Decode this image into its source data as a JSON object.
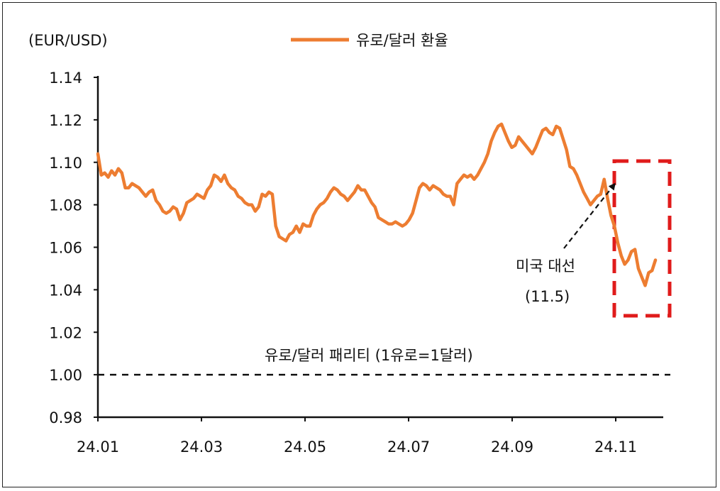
{
  "chart_data": {
    "type": "line",
    "unit_label": "(EUR/USD)",
    "legend": "유로/달러 환율",
    "legend_position": "top-center",
    "series_color": "#ED7D31",
    "grid": false,
    "ylim": [
      0.98,
      1.14
    ],
    "y_ticks": [
      "1.14",
      "1.12",
      "1.10",
      "1.08",
      "1.06",
      "1.04",
      "1.02",
      "1.00",
      "0.98"
    ],
    "x_ticks": [
      "24.01",
      "24.03",
      "24.05",
      "24.07",
      "24.09",
      "24.11"
    ],
    "parity": {
      "value": 1.0,
      "label": "유로/달러 패리티 (1유로=1달러)",
      "style": "dashed"
    },
    "annotation": {
      "line1": "미국 대선",
      "line2": "(11.5)"
    },
    "highlight_color": "#E01B1B",
    "series": [
      {
        "name": "유로/달러 환율",
        "values": [
          1.104,
          1.094,
          1.095,
          1.093,
          1.096,
          1.094,
          1.097,
          1.095,
          1.088,
          1.088,
          1.09,
          1.089,
          1.088,
          1.086,
          1.084,
          1.086,
          1.087,
          1.082,
          1.08,
          1.077,
          1.076,
          1.077,
          1.079,
          1.078,
          1.073,
          1.076,
          1.081,
          1.082,
          1.083,
          1.085,
          1.084,
          1.083,
          1.087,
          1.089,
          1.094,
          1.093,
          1.091,
          1.094,
          1.09,
          1.088,
          1.087,
          1.084,
          1.083,
          1.081,
          1.08,
          1.08,
          1.077,
          1.079,
          1.085,
          1.084,
          1.086,
          1.085,
          1.07,
          1.065,
          1.064,
          1.063,
          1.066,
          1.067,
          1.07,
          1.067,
          1.071,
          1.07,
          1.07,
          1.075,
          1.078,
          1.08,
          1.081,
          1.083,
          1.086,
          1.088,
          1.087,
          1.085,
          1.084,
          1.082,
          1.084,
          1.086,
          1.089,
          1.087,
          1.087,
          1.084,
          1.081,
          1.079,
          1.074,
          1.073,
          1.072,
          1.071,
          1.071,
          1.072,
          1.071,
          1.07,
          1.071,
          1.073,
          1.076,
          1.082,
          1.088,
          1.09,
          1.089,
          1.087,
          1.089,
          1.088,
          1.087,
          1.085,
          1.084,
          1.084,
          1.08,
          1.09,
          1.092,
          1.094,
          1.093,
          1.094,
          1.092,
          1.094,
          1.097,
          1.1,
          1.104,
          1.11,
          1.114,
          1.117,
          1.118,
          1.114,
          1.11,
          1.107,
          1.108,
          1.112,
          1.11,
          1.108,
          1.106,
          1.104,
          1.107,
          1.111,
          1.115,
          1.116,
          1.114,
          1.113,
          1.117,
          1.116,
          1.111,
          1.106,
          1.098,
          1.097,
          1.094,
          1.09,
          1.086,
          1.083,
          1.08,
          1.082,
          1.084,
          1.085,
          1.092,
          1.083,
          1.075,
          1.07,
          1.062,
          1.056,
          1.052,
          1.054,
          1.058,
          1.059,
          1.05,
          1.046,
          1.042,
          1.048,
          1.049,
          1.054
        ]
      }
    ]
  }
}
